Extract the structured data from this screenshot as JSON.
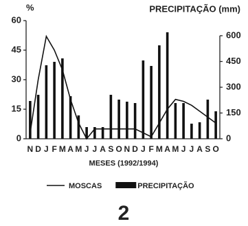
{
  "chart_data": {
    "type": "bar-line",
    "number": "2",
    "y_label": "%",
    "y2_label": "PRECIPITAÇÃO (mm)",
    "x_label": "MESES (1992/1994)",
    "categories": [
      "N",
      "D",
      "J",
      "F",
      "M",
      "A",
      "M",
      "J",
      "J",
      "A",
      "S",
      "O",
      "N",
      "D",
      "J",
      "F",
      "M",
      "A",
      "M",
      "J",
      "J",
      "A",
      "S",
      "O"
    ],
    "series": [
      {
        "name": "MOSCAS",
        "type": "line",
        "axis": "y",
        "color": "#111111",
        "values": [
          3,
          30,
          52,
          45,
          35,
          20,
          8,
          0,
          5,
          5,
          5,
          5,
          5,
          5,
          3,
          1,
          8,
          15,
          20,
          19,
          17,
          14,
          11,
          8
        ]
      },
      {
        "name": "PRECIPITAÇÃO",
        "type": "bar",
        "axis": "y2",
        "color": "#111111",
        "values": [
          220,
          256,
          428,
          448,
          468,
          248,
          136,
          68,
          68,
          68,
          256,
          228,
          216,
          208,
          456,
          424,
          544,
          620,
          208,
          208,
          88,
          96,
          228,
          160
        ]
      }
    ],
    "ylim": [
      0,
      60
    ],
    "yticks": [
      0,
      15,
      30,
      45,
      60
    ],
    "y2lim": [
      0,
      688
    ],
    "y2ticks": [
      0,
      150,
      300,
      450,
      600
    ]
  }
}
